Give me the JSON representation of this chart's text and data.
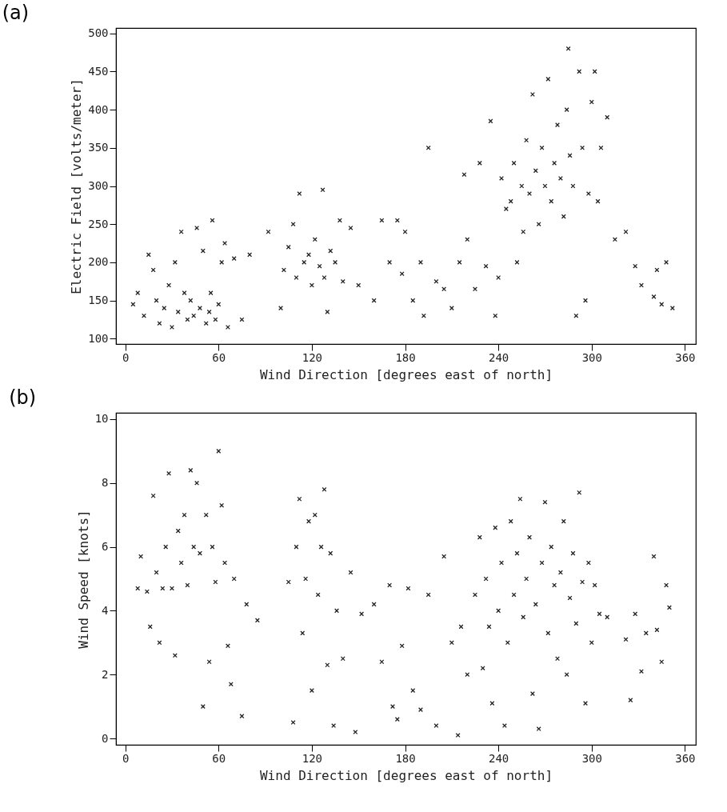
{
  "chart_data": [
    {
      "type": "scatter",
      "title": "(a)",
      "xlabel": "Wind Direction [degrees east of north]",
      "ylabel": "Electric Field [volts/meter]",
      "xlim": [
        -6,
        367
      ],
      "ylim": [
        93,
        507
      ],
      "xticks": [
        0,
        60,
        120,
        180,
        240,
        300,
        360
      ],
      "yticks": [
        100,
        150,
        200,
        250,
        300,
        350,
        400,
        450,
        500
      ],
      "grid": false,
      "marker": "cross",
      "series": [
        {
          "color": "#222222",
          "x": [
            5,
            8,
            12,
            15,
            18,
            20,
            22,
            25,
            28,
            30,
            32,
            34,
            36,
            38,
            40,
            42,
            44,
            46,
            48,
            50,
            52,
            54,
            55,
            56,
            58,
            60,
            62,
            64,
            66,
            70,
            75,
            80,
            92,
            100,
            102,
            105,
            108,
            110,
            112,
            115,
            118,
            120,
            122,
            125,
            127,
            128,
            130,
            132,
            135,
            138,
            140,
            145,
            150,
            160,
            165,
            170,
            175,
            178,
            180,
            185,
            190,
            192,
            195,
            200,
            205,
            210,
            215,
            218,
            220,
            225,
            228,
            232,
            235,
            238,
            240,
            242,
            245,
            248,
            250,
            252,
            255,
            256,
            258,
            260,
            262,
            264,
            266,
            268,
            270,
            272,
            274,
            276,
            278,
            280,
            282,
            284,
            285,
            286,
            288,
            290,
            292,
            294,
            296,
            298,
            300,
            302,
            304,
            306,
            310,
            315,
            322,
            328,
            332,
            340,
            342,
            345,
            348,
            352
          ],
          "values": [
            145,
            160,
            130,
            210,
            190,
            150,
            120,
            140,
            170,
            115,
            200,
            135,
            240,
            160,
            125,
            150,
            130,
            245,
            140,
            215,
            120,
            135,
            160,
            255,
            125,
            145,
            200,
            225,
            115,
            205,
            125,
            210,
            240,
            140,
            190,
            220,
            250,
            180,
            290,
            200,
            210,
            170,
            230,
            195,
            295,
            180,
            135,
            215,
            200,
            255,
            175,
            245,
            170,
            150,
            255,
            200,
            255,
            185,
            240,
            150,
            200,
            130,
            350,
            175,
            165,
            140,
            200,
            315,
            230,
            165,
            330,
            195,
            385,
            130,
            180,
            310,
            270,
            280,
            330,
            200,
            300,
            240,
            360,
            290,
            420,
            320,
            250,
            350,
            300,
            440,
            280,
            330,
            380,
            310,
            260,
            400,
            480,
            340,
            300,
            130,
            450,
            350,
            150,
            290,
            410,
            450,
            280,
            350,
            390,
            230,
            240,
            195,
            170,
            155,
            190,
            145,
            200,
            140
          ]
        }
      ]
    },
    {
      "type": "scatter",
      "title": "(b)",
      "xlabel": "Wind Direction [degrees east of north]",
      "ylabel": "Wind Speed [knots]",
      "xlim": [
        -6,
        367
      ],
      "ylim": [
        -0.2,
        10.2
      ],
      "xticks": [
        0,
        60,
        120,
        180,
        240,
        300,
        360
      ],
      "yticks": [
        0,
        2,
        4,
        6,
        8,
        10
      ],
      "grid": false,
      "marker": "cross",
      "series": [
        {
          "color": "#222222",
          "x": [
            8,
            10,
            14,
            16,
            18,
            20,
            22,
            24,
            26,
            28,
            30,
            32,
            34,
            36,
            38,
            40,
            42,
            44,
            46,
            48,
            50,
            52,
            54,
            56,
            58,
            60,
            62,
            64,
            66,
            68,
            70,
            75,
            78,
            85,
            105,
            108,
            110,
            112,
            114,
            116,
            118,
            120,
            122,
            124,
            126,
            128,
            130,
            132,
            134,
            136,
            140,
            145,
            148,
            152,
            160,
            165,
            170,
            172,
            175,
            178,
            182,
            185,
            190,
            195,
            200,
            205,
            210,
            214,
            216,
            220,
            225,
            228,
            230,
            232,
            234,
            236,
            238,
            240,
            242,
            244,
            246,
            248,
            250,
            252,
            254,
            256,
            258,
            260,
            262,
            264,
            266,
            268,
            270,
            272,
            274,
            276,
            278,
            280,
            282,
            284,
            286,
            288,
            290,
            292,
            294,
            296,
            298,
            300,
            302,
            305,
            310,
            322,
            325,
            328,
            332,
            335,
            340,
            342,
            345,
            348,
            350
          ],
          "values": [
            4.7,
            5.7,
            4.6,
            3.5,
            7.6,
            5.2,
            3.0,
            4.7,
            6.0,
            8.3,
            4.7,
            2.6,
            6.5,
            5.5,
            7.0,
            4.8,
            8.4,
            6.0,
            8.0,
            5.8,
            1.0,
            7.0,
            2.4,
            6.0,
            4.9,
            9.0,
            7.3,
            5.5,
            2.9,
            1.7,
            5.0,
            0.7,
            4.2,
            3.7,
            4.9,
            0.5,
            6.0,
            7.5,
            3.3,
            5.0,
            6.8,
            1.5,
            7.0,
            4.5,
            6.0,
            7.8,
            2.3,
            5.8,
            0.4,
            4.0,
            2.5,
            5.2,
            0.2,
            3.9,
            4.2,
            2.4,
            4.8,
            1.0,
            0.6,
            2.9,
            4.7,
            1.5,
            0.9,
            4.5,
            0.4,
            5.7,
            3.0,
            0.1,
            3.5,
            2.0,
            4.5,
            6.3,
            2.2,
            5.0,
            3.5,
            1.1,
            6.6,
            4.0,
            5.5,
            0.4,
            3.0,
            6.8,
            4.5,
            5.8,
            7.5,
            3.8,
            5.0,
            6.3,
            1.4,
            4.2,
            0.3,
            5.5,
            7.4,
            3.3,
            6.0,
            4.8,
            2.5,
            5.2,
            6.8,
            2.0,
            4.4,
            5.8,
            3.6,
            7.7,
            4.9,
            1.1,
            5.5,
            3.0,
            4.8,
            3.9,
            3.8,
            3.1,
            1.2,
            3.9,
            2.1,
            3.3,
            5.7,
            3.4,
            2.4,
            4.8,
            4.1
          ]
        }
      ]
    }
  ]
}
